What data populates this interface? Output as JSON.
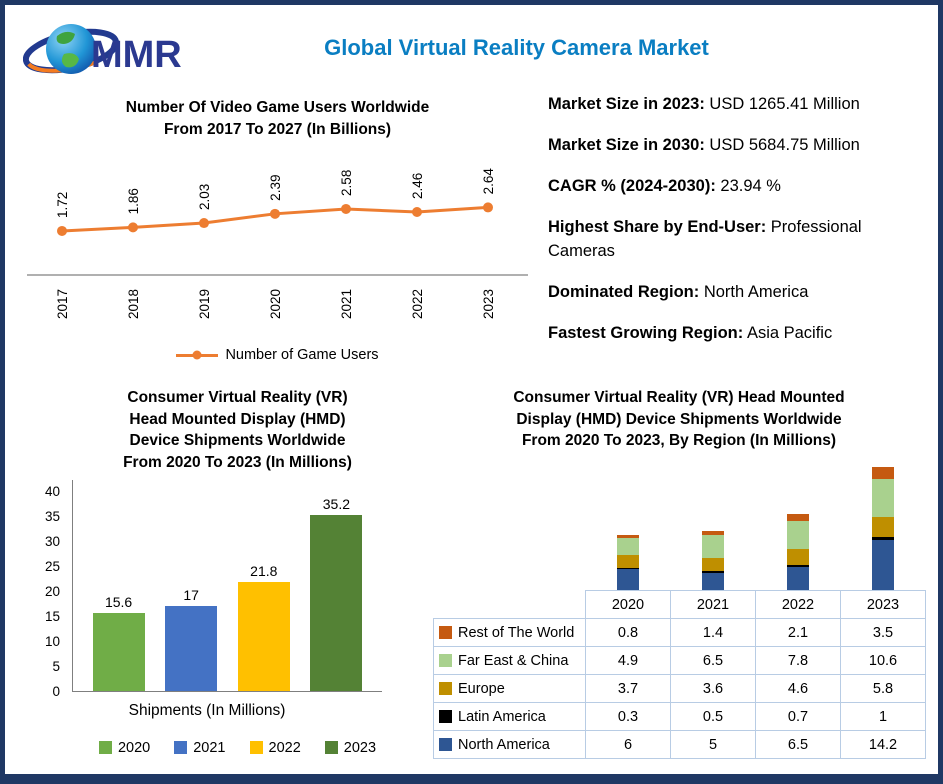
{
  "theme": {
    "accent_title_color": "#0a7ec2",
    "border_color": "#1f3864"
  },
  "header": {
    "title": "Global Virtual Reality Camera Market",
    "logo_text": "MMR"
  },
  "facts": [
    {
      "label": "Market Size in 2023:",
      "value": " USD 1265.41 Million"
    },
    {
      "label": "Market Size in 2030:",
      "value": " USD 5684.75 Million"
    },
    {
      "label": "CAGR % (2024-2030):",
      "value": " 23.94 %"
    },
    {
      "label": "Highest Share by End-User:",
      "value": " Professional Cameras"
    },
    {
      "label": "Dominated Region:",
      "value": " North America"
    },
    {
      "label": "Fastest Growing Region:",
      "value": " Asia Pacific"
    }
  ],
  "chart_data": [
    {
      "type": "line",
      "title": "Number Of Video Game Users Worldwide From 2017 To 2027 (In Billions)",
      "title_lines": [
        "Number Of Video Game Users Worldwide",
        "From 2017 To 2027 (In Billions)"
      ],
      "categories": [
        "2017",
        "2018",
        "2019",
        "2020",
        "2021",
        "2022",
        "2023"
      ],
      "series": [
        {
          "name": "Number of Game Users",
          "color": "#ED7D31",
          "values": [
            1.72,
            1.86,
            2.03,
            2.39,
            2.58,
            2.46,
            2.64
          ]
        }
      ],
      "ylim": [
        0,
        3
      ],
      "grid": false,
      "legend_position": "bottom"
    },
    {
      "type": "bar",
      "title": "Consumer Virtual Reality (VR) Head Mounted Display (HMD) Device Shipments Worldwide From 2020 To 2023 (In Millions)",
      "title_lines": [
        "Consumer Virtual Reality (VR)",
        "Head Mounted Display (HMD)",
        "Device Shipments Worldwide",
        "From 2020 To 2023 (In Millions)"
      ],
      "categories": [
        "2020",
        "2021",
        "2022",
        "2023"
      ],
      "values": [
        15.6,
        17,
        21.8,
        35.2
      ],
      "colors": [
        "#70AD47",
        "#4472C4",
        "#FFC000",
        "#548235"
      ],
      "xlabel": "Shipments (In Millions)",
      "ylabel": "",
      "ylim": [
        0,
        40
      ],
      "yticks": [
        0,
        5,
        10,
        15,
        20,
        25,
        30,
        35,
        40
      ],
      "grid": false,
      "legend_position": "bottom"
    },
    {
      "type": "stacked-bar",
      "title": "Consumer Virtual Reality (VR) Head Mounted Display (HMD) Device Shipments Worldwide From 2020 To 2023, By Region (In Millions)",
      "title_lines": [
        "Consumer Virtual Reality (VR) Head Mounted",
        "Display (HMD) Device Shipments Worldwide",
        "From 2020 To 2023, By Region (In Millions)"
      ],
      "categories": [
        "2020",
        "2021",
        "2022",
        "2023"
      ],
      "series": [
        {
          "name": "Rest of The World",
          "color": "#C55A11",
          "values": [
            0.8,
            1.4,
            2.1,
            3.5
          ]
        },
        {
          "name": "Far East & China",
          "color": "#A9D18E",
          "values": [
            4.9,
            6.5,
            7.8,
            10.6
          ]
        },
        {
          "name": "Europe",
          "color": "#BF8F00",
          "values": [
            3.7,
            3.6,
            4.6,
            5.8
          ]
        },
        {
          "name": "Latin America",
          "color": "#000000",
          "values": [
            0.3,
            0.5,
            0.7,
            1
          ]
        },
        {
          "name": "North America",
          "color": "#2E5693",
          "values": [
            6,
            5,
            6.5,
            14.2
          ]
        }
      ],
      "table": true,
      "legend_position": "table"
    }
  ]
}
